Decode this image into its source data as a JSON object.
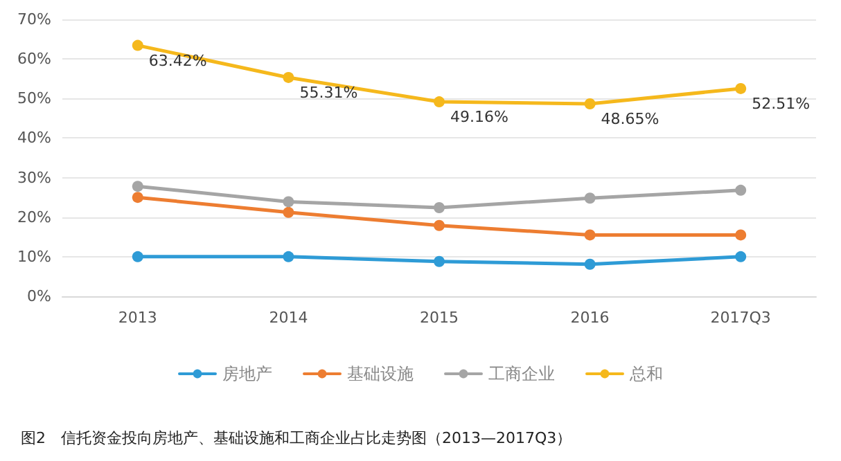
{
  "chart_data": {
    "type": "line",
    "title": "图2　信托资金投向房地产、基础设施和工商企业占比走势图（2013—2017Q3）",
    "categories": [
      "2013",
      "2014",
      "2015",
      "2016",
      "2017Q3"
    ],
    "series": [
      {
        "name": "房地产",
        "color": "#2e9bd6",
        "values": [
          10,
          10,
          8.8,
          8.1,
          10
        ]
      },
      {
        "name": "基础设施",
        "color": "#ed7d31",
        "values": [
          25,
          21.2,
          17.9,
          15.5,
          15.5
        ]
      },
      {
        "name": "工商企业",
        "color": "#a5a5a5",
        "values": [
          27.8,
          23.9,
          22.4,
          24.8,
          26.8
        ]
      },
      {
        "name": "总和",
        "color": "#f5b81c",
        "values": [
          63.42,
          55.31,
          49.16,
          48.65,
          52.51
        ],
        "value_labels": [
          "63.42%",
          "55.31%",
          "49.16%",
          "48.65%",
          "52.51%"
        ]
      }
    ],
    "ylim": [
      0,
      70
    ],
    "yticks": [
      {
        "value": 0,
        "label": "0%"
      },
      {
        "value": 10,
        "label": "10%"
      },
      {
        "value": 20,
        "label": "20%"
      },
      {
        "value": 30,
        "label": "30%"
      },
      {
        "value": 40,
        "label": "40%"
      },
      {
        "value": 50,
        "label": "50%"
      },
      {
        "value": 60,
        "label": "60%"
      },
      {
        "value": 70,
        "label": "70%"
      }
    ],
    "grid": "y",
    "legend": "bottom",
    "marker": "circle",
    "line_style": "solid"
  }
}
